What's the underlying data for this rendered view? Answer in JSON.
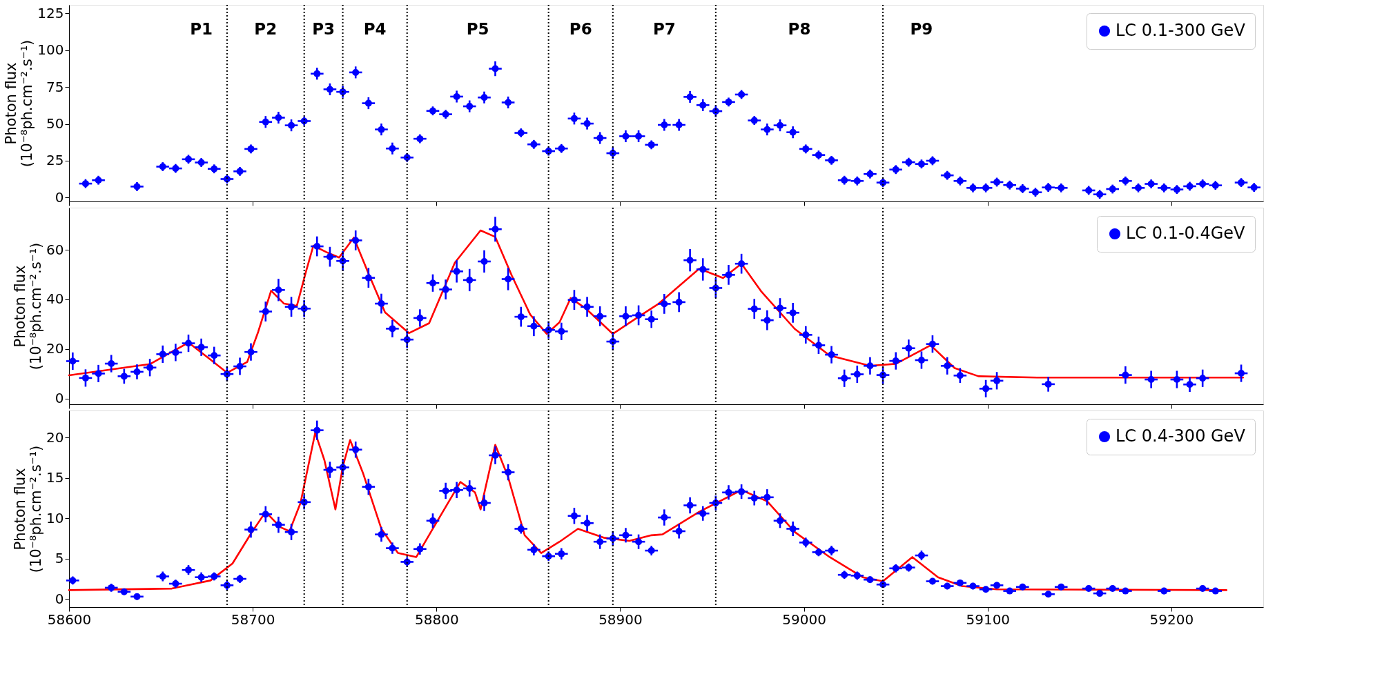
{
  "chart_data": [
    {
      "type": "scatter",
      "ylabel": "Photon flux\n(10⁻⁸ph.cm⁻².s⁻¹)",
      "xlim": [
        58600,
        59250
      ],
      "xticks": [
        58600,
        58700,
        58800,
        58900,
        59000,
        59100,
        59200
      ],
      "ylim": [
        -2.6,
        130.7
      ],
      "yticks": [
        0,
        25,
        50,
        75,
        100,
        125
      ],
      "tick_labels": "y",
      "legend": "top right",
      "grid": false,
      "series": [
        {
          "name": "LC 0.1-300 GeV",
          "color": "#0000ff",
          "marker": "circle",
          "x": [
            58609,
            58616,
            58637,
            58651,
            58658,
            58665,
            58672,
            58679,
            58686,
            58693,
            58699,
            58707,
            58714,
            58721,
            58728,
            58735,
            58742,
            58749,
            58756,
            58763,
            58770,
            58776,
            58784,
            58791,
            58798,
            58805,
            58811,
            58818,
            58826,
            58832,
            58839,
            58846,
            58853,
            58861,
            58868,
            58875,
            58882,
            58889,
            58896,
            58903,
            58910,
            58917,
            58924,
            58932,
            58938,
            58945,
            58952,
            58959,
            58966,
            58973,
            58980,
            58987,
            58994,
            59001,
            59008,
            59015,
            59022,
            59029,
            59036,
            59043,
            59050,
            59057,
            59064,
            59070,
            59078,
            59085,
            59092,
            59099,
            59105,
            59112,
            59119,
            59126,
            59133,
            59140,
            59155,
            59161,
            59168,
            59175,
            59182,
            59189,
            59196,
            59203,
            59210,
            59217,
            59224,
            59238,
            59245
          ],
          "values": [
            9.5,
            11.8,
            7.5,
            21,
            19.8,
            26,
            23.8,
            19.5,
            12.6,
            17.8,
            33,
            51.3,
            54.2,
            49,
            51.9,
            84,
            73.4,
            71.7,
            84.9,
            64,
            46.2,
            33.3,
            27.2,
            39.9,
            58.8,
            56.5,
            68.5,
            61.9,
            67.9,
            87.4,
            64.5,
            43.9,
            36.1,
            31.5,
            33.3,
            53.6,
            50.2,
            40.4,
            30.1,
            41.6,
            41.6,
            35.8,
            49.3,
            49.3,
            68.3,
            62.7,
            58.6,
            64.8,
            69.9,
            52.3,
            46.2,
            49.0,
            44.3,
            33.0,
            28.9,
            25.3,
            11.8,
            11.3,
            16.0,
            10.2,
            19.0,
            24.0,
            22.8,
            25.0,
            15.1,
            11.3,
            6.6,
            6.6,
            10.5,
            8.5,
            6.1,
            3.6,
            6.9,
            6.6,
            4.9,
            2.2,
            5.8,
            11.3,
            6.6,
            9.3,
            6.6,
            5.5,
            7.7,
            9.3,
            8.3,
            10.2,
            6.9
          ],
          "errors": [
            3,
            3,
            3,
            3,
            3,
            3,
            3,
            3,
            3,
            3,
            3,
            4,
            4,
            4,
            3,
            4,
            4,
            4,
            4,
            4,
            4,
            4,
            3,
            3,
            3,
            3,
            4,
            4,
            4,
            5,
            4,
            3,
            3,
            3,
            3,
            4,
            4,
            4,
            4,
            4,
            4,
            3,
            4,
            4,
            4,
            4,
            4,
            3,
            3,
            3,
            4,
            4,
            4,
            3,
            3,
            3,
            3,
            3,
            3,
            3,
            3,
            3,
            3,
            3,
            3,
            3,
            3,
            3,
            3,
            3,
            3,
            3,
            3,
            3,
            3,
            3,
            3,
            3,
            3,
            3,
            3,
            3,
            3,
            3,
            3,
            3,
            3
          ],
          "xerrors": [
            3.5,
            3.5,
            3.5,
            3.5,
            3.5,
            3.5,
            3.5,
            3.5,
            3.5,
            3.5,
            3.5,
            3.5,
            3.5,
            3.5,
            3.5,
            3.5,
            3.5,
            3.5,
            3.5,
            3.5,
            3.5,
            3.5,
            3.5,
            3.5,
            3.5,
            3.5,
            3.5,
            3.5,
            3.5,
            3.5,
            3.5,
            3.5,
            3.5,
            3.5,
            3.5,
            3.5,
            3.5,
            3.5,
            3.5,
            3.5,
            3.5,
            3.5,
            3.5,
            3.5,
            3.5,
            3.5,
            3.5,
            3.5,
            3.5,
            3.5,
            3.5,
            3.5,
            3.5,
            3.5,
            3.5,
            3.5,
            3.5,
            3.5,
            3.5,
            3.5,
            3.5,
            3.5,
            3.5,
            3.5,
            3.5,
            3.5,
            3.5,
            3.5,
            3.5,
            3.5,
            3.5,
            3.5,
            3.5,
            3.5,
            3.5,
            3.5,
            3.5,
            3.5,
            3.5,
            3.5,
            3.5,
            3.5,
            3.5,
            3.5,
            3.5,
            3.5,
            3.5
          ]
        }
      ],
      "ref_lines": [
        {
          "axis": "x",
          "value": 58686,
          "color": "#000000",
          "line_style": "dotted"
        },
        {
          "axis": "x",
          "value": 58728,
          "color": "#000000",
          "line_style": "dotted"
        },
        {
          "axis": "x",
          "value": 58749,
          "color": "#000000",
          "line_style": "dotted"
        },
        {
          "axis": "x",
          "value": 58784,
          "color": "#000000",
          "line_style": "dotted"
        },
        {
          "axis": "x",
          "value": 58861,
          "color": "#000000",
          "line_style": "dotted"
        },
        {
          "axis": "x",
          "value": 58896,
          "color": "#000000",
          "line_style": "dotted"
        },
        {
          "axis": "x",
          "value": 58952,
          "color": "#000000",
          "line_style": "dotted"
        },
        {
          "axis": "x",
          "value": 59043,
          "color": "#000000",
          "line_style": "dotted"
        }
      ],
      "annotations": [
        "P1",
        "P2",
        "P3",
        "P4",
        "P5",
        "P6",
        "P7",
        "P8",
        "P9"
      ]
    },
    {
      "type": "scatter",
      "ylabel": "Photon flux\n(10⁻⁸ph.cm⁻².s⁻¹)",
      "xlim": [
        58600,
        59250
      ],
      "xticks": [
        58600,
        58700,
        58800,
        58900,
        59000,
        59100,
        59200
      ],
      "ylim": [
        -2.3,
        77
      ],
      "yticks": [
        0,
        20,
        40,
        60
      ],
      "tick_labels": "y",
      "legend": "top right",
      "grid": false,
      "series": [
        {
          "name": "LC 0.1-0.4GeV",
          "color": "#0000ff",
          "marker": "circle",
          "x": [
            58602,
            58609,
            58616,
            58623,
            58630,
            58637,
            58644,
            58651,
            58658,
            58665,
            58672,
            58679,
            58686,
            58693,
            58699,
            58707,
            58714,
            58721,
            58728,
            58735,
            58742,
            58749,
            58756,
            58763,
            58770,
            58776,
            58784,
            58791,
            58798,
            58805,
            58811,
            58818,
            58826,
            58832,
            58839,
            58846,
            58853,
            58861,
            58868,
            58875,
            58882,
            58889,
            58896,
            58903,
            58910,
            58917,
            58924,
            58932,
            58938,
            58945,
            58952,
            58959,
            58966,
            58973,
            58980,
            58987,
            58994,
            59001,
            59008,
            59015,
            59022,
            59029,
            59036,
            59043,
            59050,
            59057,
            59064,
            59070,
            59078,
            59085,
            59099,
            59105,
            59133,
            59175,
            59189,
            59203,
            59210,
            59217,
            59238
          ],
          "values": [
            15.1,
            8.3,
            10.1,
            14.1,
            9,
            10.8,
            12.5,
            17.9,
            18.6,
            22.3,
            20.7,
            17.4,
            9.9,
            13,
            18.8,
            35.1,
            43.8,
            37,
            36.3,
            61.4,
            57.2,
            55.5,
            63.8,
            48.7,
            38.3,
            28.2,
            23.8,
            32.5,
            46.6,
            44,
            51.3,
            47.8,
            55.3,
            68.3,
            48.2,
            33,
            29.2,
            27.7,
            27.1,
            39.8,
            37,
            33.2,
            23,
            33.2,
            33.6,
            32,
            38.2,
            38.9,
            55.8,
            52.1,
            44.6,
            49.9,
            54.4,
            36.2,
            31.6,
            36.5,
            34.6,
            25.7,
            21.5,
            17.7,
            8.2,
            9.8,
            13.2,
            9.5,
            15.2,
            20.3,
            15.5,
            22.0,
            13.2,
            9.3,
            4.0,
            7.2,
            5.8,
            9.5,
            7.7,
            7.7,
            5.7,
            8.2,
            10.2
          ],
          "errors": [
            3.5,
            3.5,
            3.5,
            3.5,
            3,
            3,
            3.5,
            3.5,
            3.5,
            3.5,
            3.5,
            3.5,
            3,
            3.5,
            3.5,
            4,
            4.5,
            4,
            3.5,
            4,
            4,
            4,
            4,
            4,
            4,
            3.5,
            3.5,
            3.5,
            3.5,
            4,
            4.5,
            4.5,
            4.5,
            5,
            4.5,
            4,
            4,
            3.5,
            3.5,
            4,
            4,
            4,
            3.5,
            4,
            4,
            3.5,
            4,
            4,
            4.5,
            4.5,
            4,
            4,
            4,
            4,
            4,
            4,
            4,
            3.5,
            3.5,
            3.5,
            3.5,
            3.5,
            3.5,
            3.5,
            3.5,
            3.5,
            3.5,
            3.5,
            3.5,
            3,
            3.5,
            3.5,
            3,
            3.5,
            3.5,
            3.5,
            3,
            3.5,
            3.5
          ],
          "xerrors": [
            3.5,
            3.5,
            3.5,
            3.5,
            3.5,
            3.5,
            3.5,
            3.5,
            3.5,
            3.5,
            3.5,
            3.5,
            3.5,
            3.5,
            3.5,
            3.5,
            3.5,
            3.5,
            3.5,
            3.5,
            3.5,
            3.5,
            3.5,
            3.5,
            3.5,
            3.5,
            3.5,
            3.5,
            3.5,
            3.5,
            3.5,
            3.5,
            3.5,
            3.5,
            3.5,
            3.5,
            3.5,
            3.5,
            3.5,
            3.5,
            3.5,
            3.5,
            3.5,
            3.5,
            3.5,
            3.5,
            3.5,
            3.5,
            3.5,
            3.5,
            3.5,
            3.5,
            3.5,
            3.5,
            3.5,
            3.5,
            3.5,
            3.5,
            3.5,
            3.5,
            3.5,
            3.5,
            3.5,
            3.5,
            3.5,
            3.5,
            3.5,
            3.5,
            3.5,
            3.5,
            3.5,
            3.5,
            3.5,
            3.5,
            3.5,
            3.5,
            3.5,
            3.5,
            3.5
          ]
        },
        {
          "type": "line",
          "color": "#ff0000",
          "line_style": "solid",
          "marker": "none",
          "x": [
            58600,
            58644,
            58665,
            58677,
            58686,
            58697,
            58703,
            58710,
            58717,
            58724,
            58729,
            58733,
            58740,
            58747,
            58755,
            58763,
            58772,
            58785,
            58796,
            58810,
            58824,
            58832,
            58841,
            58851,
            58860,
            58867,
            58873,
            58881,
            58896,
            58910,
            58921,
            58943,
            58956,
            58966,
            58977,
            58995,
            59014,
            59036,
            59050,
            59069,
            59082,
            59095,
            59127,
            59239
          ],
          "values": [
            9.4,
            13.9,
            22.6,
            15.7,
            10.4,
            14.8,
            27,
            43.5,
            38.3,
            37.4,
            51.3,
            61.7,
            59.1,
            56.9,
            64.9,
            50.4,
            34.8,
            26.4,
            30.4,
            54.8,
            67.8,
            65.2,
            49.6,
            33.9,
            26.1,
            30.8,
            40.5,
            36.5,
            26.1,
            33,
            38.3,
            52.4,
            48.6,
            54.4,
            43.0,
            28.1,
            17.4,
            13.2,
            14.0,
            21.5,
            12.3,
            9.0,
            8.5,
            8.5
          ]
        }
      ],
      "ref_lines": [
        {
          "axis": "x",
          "value": 58686,
          "color": "#000000",
          "line_style": "dotted"
        },
        {
          "axis": "x",
          "value": 58728,
          "color": "#000000",
          "line_style": "dotted"
        },
        {
          "axis": "x",
          "value": 58749,
          "color": "#000000",
          "line_style": "dotted"
        },
        {
          "axis": "x",
          "value": 58784,
          "color": "#000000",
          "line_style": "dotted"
        },
        {
          "axis": "x",
          "value": 58861,
          "color": "#000000",
          "line_style": "dotted"
        },
        {
          "axis": "x",
          "value": 58896,
          "color": "#000000",
          "line_style": "dotted"
        },
        {
          "axis": "x",
          "value": 58952,
          "color": "#000000",
          "line_style": "dotted"
        },
        {
          "axis": "x",
          "value": 59043,
          "color": "#000000",
          "line_style": "dotted"
        }
      ]
    },
    {
      "type": "scatter",
      "ylabel": "Photon flux\n(10⁻⁸ph.cm⁻².s⁻¹)",
      "xlim": [
        58600,
        59250
      ],
      "xticks": [
        58600,
        58700,
        58800,
        58900,
        59000,
        59100,
        59200
      ],
      "ylim": [
        -1,
        23.35
      ],
      "yticks": [
        0,
        5,
        10,
        15,
        20
      ],
      "legend": "top right",
      "grid": false,
      "series": [
        {
          "name": "LC 0.4-300 GeV",
          "color": "#0000ff",
          "marker": "circle",
          "x": [
            58602,
            58623,
            58630,
            58637,
            58651,
            58658,
            58665,
            58672,
            58679,
            58686,
            58693,
            58699,
            58707,
            58714,
            58721,
            58728,
            58735,
            58742,
            58749,
            58756,
            58763,
            58770,
            58776,
            58784,
            58791,
            58798,
            58805,
            58811,
            58818,
            58826,
            58832,
            58839,
            58846,
            58853,
            58861,
            58868,
            58875,
            58882,
            58889,
            58896,
            58903,
            58910,
            58917,
            58924,
            58932,
            58938,
            58945,
            58952,
            58959,
            58966,
            58973,
            58980,
            58987,
            58994,
            59001,
            59008,
            59015,
            59022,
            59029,
            59036,
            59043,
            59050,
            59057,
            59064,
            59070,
            59078,
            59085,
            59092,
            59099,
            59105,
            59112,
            59119,
            59133,
            59140,
            59155,
            59161,
            59168,
            59175,
            59196,
            59217,
            59224
          ],
          "values": [
            2.3,
            1.4,
            0.9,
            0.3,
            2.8,
            1.9,
            3.6,
            2.7,
            2.8,
            1.7,
            2.5,
            8.6,
            10.5,
            9.2,
            8.3,
            12,
            20.9,
            16,
            16.3,
            18.5,
            13.9,
            8,
            6.3,
            4.6,
            6.2,
            9.7,
            13.4,
            13.5,
            13.7,
            11.9,
            17.8,
            15.7,
            8.7,
            6.1,
            5.3,
            5.6,
            10.3,
            9.4,
            7.1,
            7.5,
            7.9,
            7.1,
            6,
            10.1,
            8.4,
            11.6,
            10.6,
            11.9,
            13.2,
            13.3,
            12.5,
            12.6,
            9.7,
            8.7,
            7.0,
            5.8,
            6.0,
            3.0,
            2.9,
            2.4,
            1.8,
            3.8,
            3.9,
            5.4,
            2.2,
            1.6,
            2.0,
            1.6,
            1.2,
            1.7,
            1.0,
            1.5,
            0.6,
            1.5,
            1.3,
            0.7,
            1.3,
            1.0,
            1.0,
            1.3,
            1.0
          ],
          "errors": [
            0.5,
            0.5,
            0.4,
            0.4,
            0.6,
            0.5,
            0.6,
            0.6,
            0.5,
            0.6,
            0.5,
            1,
            1,
            1,
            1,
            0.9,
            1.2,
            1,
            1,
            1,
            1,
            0.9,
            0.7,
            0.6,
            0.7,
            0.9,
            1,
            1,
            1,
            1,
            1.1,
            1,
            0.6,
            0.7,
            0.6,
            0.7,
            1,
            1,
            0.9,
            0.9,
            0.9,
            0.9,
            0.6,
            1,
            0.9,
            1,
            0.9,
            0.9,
            0.9,
            0.9,
            0.9,
            1,
            0.9,
            0.9,
            0.6,
            0.5,
            0.6,
            0.5,
            0.5,
            0.4,
            0.4,
            0.5,
            0.5,
            0.6,
            0.4,
            0.4,
            0.4,
            0.4,
            0.3,
            0.4,
            0.3,
            0.4,
            0.3,
            0.4,
            0.3,
            0.3,
            0.3,
            0.3,
            0.4,
            0.3,
            0.3
          ],
          "xerrors": [
            3.5,
            3.5,
            3.5,
            3.5,
            3.5,
            3.5,
            3.5,
            3.5,
            3.5,
            3.5,
            3.5,
            3.5,
            3.5,
            3.5,
            3.5,
            3.5,
            3.5,
            3.5,
            3.5,
            3.5,
            3.5,
            3.5,
            3.5,
            3.5,
            3.5,
            3.5,
            3.5,
            3.5,
            3.5,
            3.5,
            3.5,
            3.5,
            3.5,
            3.5,
            3.5,
            3.5,
            3.5,
            3.5,
            3.5,
            3.5,
            3.5,
            3.5,
            3.5,
            3.5,
            3.5,
            3.5,
            3.5,
            3.5,
            3.5,
            3.5,
            3.5,
            3.5,
            3.5,
            3.5,
            3.5,
            3.5,
            3.5,
            3.5,
            3.5,
            3.5,
            3.5,
            3.5,
            3.5,
            3.5,
            3.5,
            3.5,
            3.5,
            3.5,
            3.5,
            3.5,
            3.5,
            3.5,
            3.5,
            3.5,
            3.5,
            3.5,
            3.5,
            3.5,
            3.5,
            3.5,
            3.5
          ]
        },
        {
          "type": "line",
          "color": "#ff0000",
          "line_style": "solid",
          "marker": "none",
          "x": [
            58600,
            58656,
            58677,
            58689,
            58699,
            58707,
            58715,
            58720,
            58726,
            58734,
            58739,
            58745,
            58749,
            58753,
            58760,
            58770,
            58779,
            58789,
            58798,
            58813,
            58821,
            58824,
            58832,
            58839,
            58848,
            58857,
            58867,
            58877,
            58891,
            58905,
            58917,
            58923,
            58943,
            58966,
            58980,
            58995,
            59014,
            59032,
            59043,
            59059,
            59073,
            59086,
            59105,
            59230
          ],
          "values": [
            1.1,
            1.3,
            2.3,
            4.4,
            8.1,
            10.8,
            8.9,
            8.4,
            11.9,
            20.6,
            17.2,
            11.1,
            16.4,
            19.7,
            15.6,
            8.7,
            5.7,
            5.2,
            8.7,
            14.5,
            13.2,
            11.1,
            19.1,
            15.1,
            7.9,
            5.7,
            7.1,
            8.7,
            7.6,
            7.2,
            7.9,
            8.0,
            10.8,
            13.5,
            12.1,
            8.3,
            5.2,
            2.7,
            2.2,
            5.2,
            2.7,
            1.6,
            1.2,
            1.1
          ]
        }
      ],
      "ref_lines": [
        {
          "axis": "x",
          "value": 58686,
          "color": "#000000",
          "line_style": "dotted"
        },
        {
          "axis": "x",
          "value": 58728,
          "color": "#000000",
          "line_style": "dotted"
        },
        {
          "axis": "x",
          "value": 58749,
          "color": "#000000",
          "line_style": "dotted"
        },
        {
          "axis": "x",
          "value": 58784,
          "color": "#000000",
          "line_style": "dotted"
        },
        {
          "axis": "x",
          "value": 58861,
          "color": "#000000",
          "line_style": "dotted"
        },
        {
          "axis": "x",
          "value": 58896,
          "color": "#000000",
          "line_style": "dotted"
        },
        {
          "axis": "x",
          "value": 58952,
          "color": "#000000",
          "line_style": "dotted"
        },
        {
          "axis": "x",
          "value": 59043,
          "color": "#000000",
          "line_style": "dotted"
        }
      ]
    }
  ]
}
